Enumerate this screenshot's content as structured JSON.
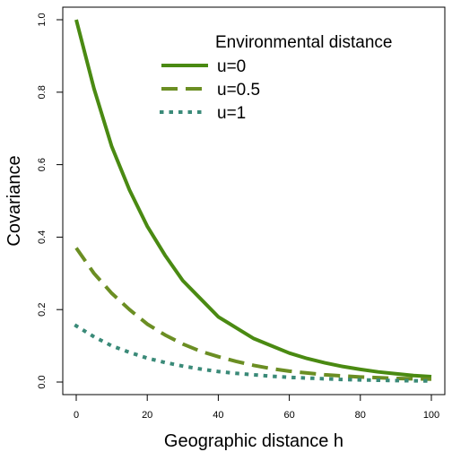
{
  "chart_data": {
    "type": "line",
    "xlabel": "Geographic distance h",
    "ylabel": "Covariance",
    "xlim": [
      0,
      100
    ],
    "ylim": [
      0,
      1.0
    ],
    "x_ticks": [
      0,
      20,
      40,
      60,
      80,
      100
    ],
    "x_tick_labels": [
      "0",
      "20",
      "40",
      "60",
      "80",
      "100"
    ],
    "y_ticks": [
      0.0,
      0.2,
      0.4,
      0.6,
      0.8,
      1.0
    ],
    "y_tick_labels": [
      "0.0",
      "0.2",
      "0.4",
      "0.6",
      "0.8",
      "1.0"
    ],
    "legend": {
      "title": "Environmental distance",
      "placement": "top-right",
      "box": false
    },
    "x": [
      0,
      5,
      10,
      15,
      20,
      25,
      30,
      35,
      40,
      45,
      50,
      55,
      60,
      65,
      70,
      75,
      80,
      85,
      90,
      95,
      100
    ],
    "series": [
      {
        "name": "u=0",
        "style": "solid",
        "color": "#4a8a12",
        "values": [
          1.0,
          0.81,
          0.65,
          0.53,
          0.43,
          0.35,
          0.28,
          0.23,
          0.18,
          0.15,
          0.12,
          0.1,
          0.08,
          0.065,
          0.053,
          0.043,
          0.035,
          0.028,
          0.023,
          0.018,
          0.015
        ]
      },
      {
        "name": "u=0.5",
        "style": "dashed",
        "color": "#6b8e23",
        "values": [
          0.37,
          0.3,
          0.245,
          0.2,
          0.16,
          0.13,
          0.105,
          0.085,
          0.07,
          0.057,
          0.046,
          0.037,
          0.03,
          0.025,
          0.02,
          0.017,
          0.014,
          0.012,
          0.01,
          0.009,
          0.008
        ]
      },
      {
        "name": "u=1",
        "style": "dotted",
        "color": "#3a8a78",
        "values": [
          0.155,
          0.125,
          0.1,
          0.082,
          0.066,
          0.054,
          0.044,
          0.036,
          0.029,
          0.024,
          0.02,
          0.016,
          0.013,
          0.011,
          0.009,
          0.007,
          0.006,
          0.005,
          0.004,
          0.0035,
          0.003
        ]
      }
    ]
  }
}
